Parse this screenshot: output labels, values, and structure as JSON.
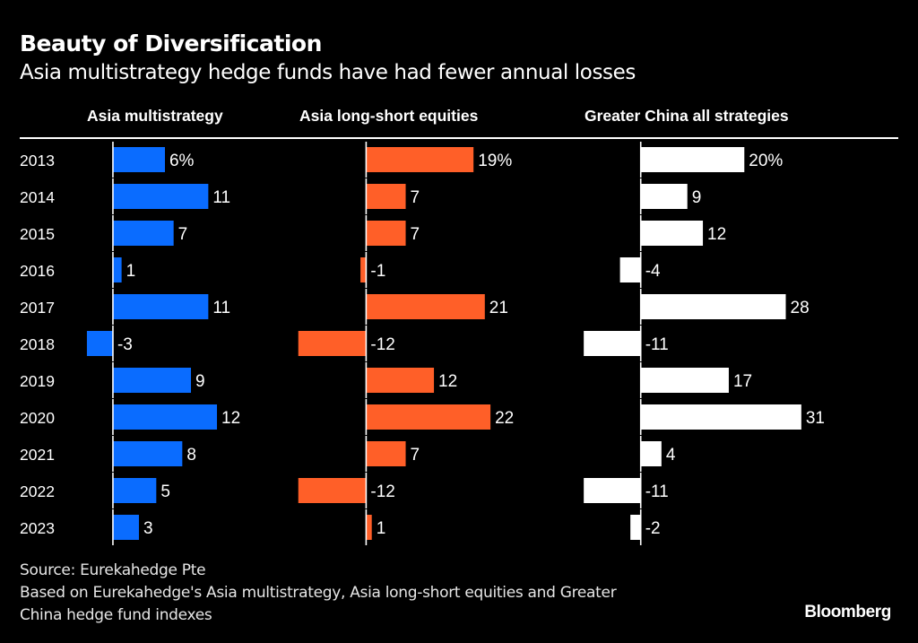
{
  "header": {
    "title": "Beauty of Diversification",
    "subtitle": "Asia multistrategy hedge funds have had fewer annual losses"
  },
  "chart_data": {
    "type": "bar",
    "orientation": "horizontal",
    "title": "Beauty of Diversification",
    "subtitle": "Asia multistrategy hedge funds have had fewer annual losses",
    "unit": "%",
    "categories": [
      "2013",
      "2014",
      "2015",
      "2016",
      "2017",
      "2018",
      "2019",
      "2020",
      "2021",
      "2022",
      "2023"
    ],
    "series": [
      {
        "name": "Asia multistrategy",
        "color": "#0a6cff",
        "values": [
          6,
          11,
          7,
          1,
          11,
          -3,
          9,
          12,
          8,
          5,
          3
        ],
        "labels": [
          "6%",
          "11",
          "7",
          "1",
          "11",
          "-3",
          "9",
          "12",
          "8",
          "5",
          "3"
        ],
        "domain": [
          -3.2,
          12.1
        ]
      },
      {
        "name": "Asia long-short equities",
        "color": "#ff5f28",
        "values": [
          19,
          7,
          7,
          -1,
          21,
          -12,
          12,
          22,
          7,
          -12,
          1
        ],
        "labels": [
          "19%",
          "7",
          "7",
          "-1",
          "21",
          "-12",
          "12",
          "22",
          "7",
          "-12",
          "1"
        ],
        "domain": [
          -11.8,
          22.3
        ]
      },
      {
        "name": "Greater China all strategies",
        "color": "#ffffff",
        "values": [
          20,
          9,
          12,
          -4,
          28,
          -11,
          17,
          31,
          4,
          -11,
          -2
        ],
        "labels": [
          "20%",
          "9",
          "12",
          "-4",
          "28",
          "-11",
          "17",
          "31",
          "4",
          "-11",
          "-2"
        ],
        "domain": [
          -11.2,
          31.2
        ]
      }
    ],
    "xlabel": "",
    "ylabel": "",
    "grid": false,
    "legend": "column headers"
  },
  "footer": {
    "source": "Source: Eurekahedge Pte",
    "note_line1": "Based on Eurekahedge's Asia multistrategy, Asia long-short equities and Greater",
    "note_line2": "China hedge fund indexes",
    "logo": "Bloomberg"
  }
}
